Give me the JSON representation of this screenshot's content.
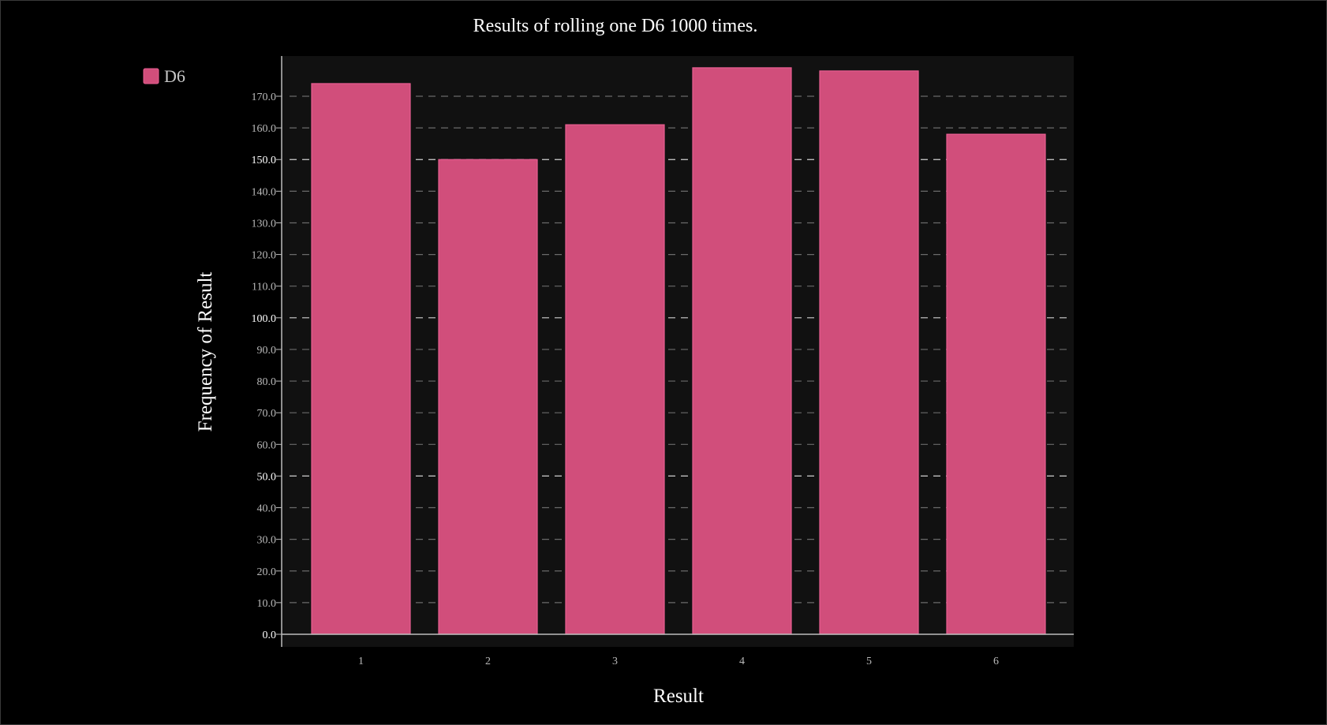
{
  "chart_data": {
    "type": "bar",
    "title": "Results of rolling one D6 1000 times.",
    "xlabel": "Result",
    "ylabel": "Frequency of Result",
    "categories": [
      "1",
      "2",
      "3",
      "4",
      "5",
      "6"
    ],
    "series": [
      {
        "name": "D6",
        "values": [
          174,
          150,
          161,
          179,
          178,
          158
        ],
        "color": "#d14e7b"
      }
    ],
    "ylim": [
      0,
      182.5
    ],
    "y_ticks": [
      "0.0",
      "10.0",
      "20.0",
      "30.0",
      "40.0",
      "50.0",
      "60.0",
      "70.0",
      "80.0",
      "90.0",
      "100.0",
      "110.0",
      "120.0",
      "130.0",
      "140.0",
      "150.0",
      "160.0",
      "170.0"
    ],
    "y_major_ticks": [
      "0.0",
      "50.0",
      "100.0",
      "150.0"
    ],
    "grid": true,
    "legend_position": "top-left",
    "colors": {
      "background": "#000000",
      "plot_background": "#111111",
      "bar_fill": "#d14e7b",
      "bar_stroke": "#e85e92",
      "grid": "#6a6a6a",
      "grid_major": "#cfcfcf",
      "axis": "#bdbdbd"
    }
  }
}
